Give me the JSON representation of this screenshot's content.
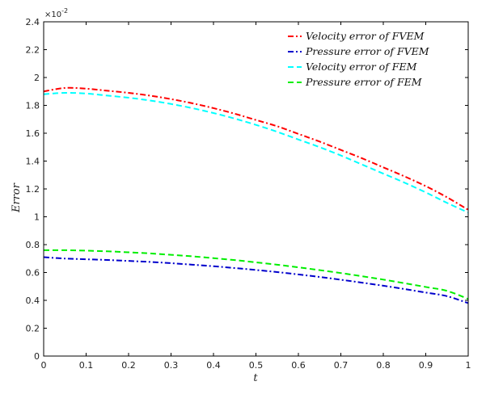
{
  "chart_data": {
    "type": "line",
    "title": "",
    "xlabel": "t",
    "ylabel": "Error",
    "y_multiplier": "×10",
    "y_multiplier_exp": "-2",
    "xlim": [
      0,
      1
    ],
    "ylim": [
      0,
      2.4
    ],
    "xticks": [
      0,
      0.1,
      0.2,
      0.3,
      0.4,
      0.5,
      0.6,
      0.7,
      0.8,
      0.9,
      1
    ],
    "xtick_labels": [
      "0",
      "0.1",
      "0.2",
      "0.3",
      "0.4",
      "0.5",
      "0.6",
      "0.7",
      "0.8",
      "0.9",
      "1"
    ],
    "yticks": [
      0,
      0.2,
      0.4,
      0.6,
      0.8,
      1,
      1.2,
      1.4,
      1.6,
      1.8,
      2,
      2.2,
      2.4
    ],
    "ytick_labels": [
      "0",
      "0.2",
      "0.4",
      "0.6",
      "0.8",
      "1",
      "1.2",
      "1.4",
      "1.6",
      "1.8",
      "2",
      "2.2",
      "2.4"
    ],
    "legend_position": "top-right",
    "x": [
      0,
      0.05,
      0.1,
      0.15,
      0.2,
      0.25,
      0.3,
      0.35,
      0.4,
      0.45,
      0.5,
      0.55,
      0.6,
      0.65,
      0.7,
      0.75,
      0.8,
      0.85,
      0.9,
      0.95,
      1
    ],
    "series": [
      {
        "name": "Velocity error of FVEM",
        "color": "#ff0000",
        "dash": "dashdot",
        "values": [
          1.9,
          1.925,
          1.92,
          1.905,
          1.89,
          1.87,
          1.845,
          1.815,
          1.78,
          1.74,
          1.695,
          1.65,
          1.595,
          1.54,
          1.48,
          1.42,
          1.355,
          1.29,
          1.22,
          1.14,
          1.05
        ]
      },
      {
        "name": "Pressure error of FVEM",
        "color": "#0000cc",
        "dash": "dashdot",
        "values": [
          0.71,
          0.7,
          0.695,
          0.69,
          0.683,
          0.676,
          0.667,
          0.656,
          0.645,
          0.632,
          0.618,
          0.603,
          0.586,
          0.568,
          0.548,
          0.527,
          0.505,
          0.481,
          0.456,
          0.43,
          0.38
        ]
      },
      {
        "name": "Velocity error of FEM",
        "color": "#00ffff",
        "dash": "dashed",
        "values": [
          1.88,
          1.89,
          1.885,
          1.87,
          1.855,
          1.835,
          1.81,
          1.78,
          1.745,
          1.705,
          1.66,
          1.61,
          1.555,
          1.5,
          1.44,
          1.375,
          1.31,
          1.245,
          1.175,
          1.1,
          1.03
        ]
      },
      {
        "name": "Pressure error of FEM",
        "color": "#00ee00",
        "dash": "dashed",
        "values": [
          0.76,
          0.76,
          0.757,
          0.752,
          0.745,
          0.737,
          0.727,
          0.716,
          0.703,
          0.689,
          0.673,
          0.656,
          0.637,
          0.617,
          0.596,
          0.573,
          0.549,
          0.523,
          0.496,
          0.468,
          0.41
        ]
      }
    ]
  }
}
